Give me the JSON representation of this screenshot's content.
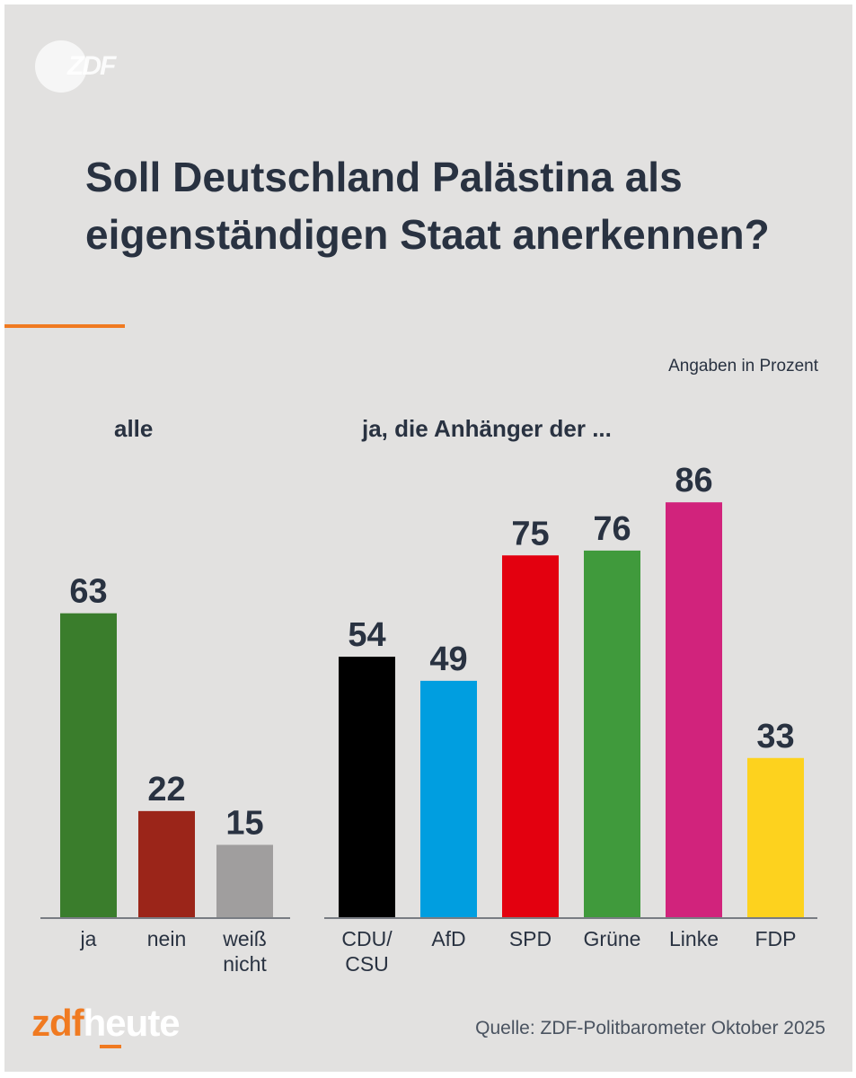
{
  "brand": {
    "corner_logo": "ZDF",
    "footer_zdf": "zdf",
    "footer_heute": "heute"
  },
  "title": "Soll Deutschland Palästina als eigenständigen Staat anerkennen?",
  "unit_note": "Angaben in Prozent",
  "source": "Quelle: ZDF-Politbarometer Oktober 2025",
  "chart_data": [
    {
      "type": "bar",
      "title": "alle",
      "categories": [
        [
          "ja"
        ],
        [
          "nein"
        ],
        [
          "weiß",
          "nicht"
        ]
      ],
      "values": [
        63,
        22,
        15
      ],
      "colors": [
        "#3a7d2c",
        "#9b2519",
        "#a09e9e"
      ],
      "ylim": [
        0,
        100
      ],
      "grid": false
    },
    {
      "type": "bar",
      "title": "ja, die Anhänger der ...",
      "categories": [
        [
          "CDU/",
          "CSU"
        ],
        [
          "AfD"
        ],
        [
          "SPD"
        ],
        [
          "Grüne"
        ],
        [
          "Linke"
        ],
        [
          "FDP"
        ]
      ],
      "values": [
        54,
        49,
        75,
        76,
        86,
        33
      ],
      "colors": [
        "#000000",
        "#009ee0",
        "#e3000f",
        "#409a3c",
        "#d1237c",
        "#fdd21e"
      ],
      "ylim": [
        0,
        100
      ],
      "grid": false
    }
  ]
}
